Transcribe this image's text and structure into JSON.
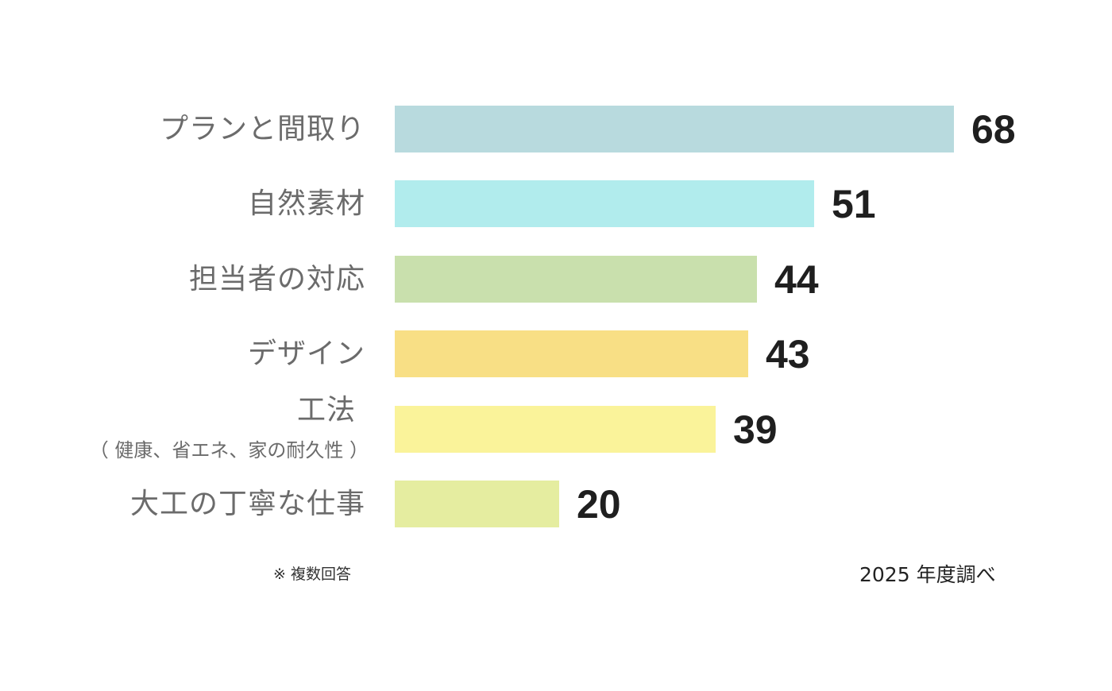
{
  "chart_data": {
    "type": "bar",
    "orientation": "horizontal",
    "categories": [
      {
        "label": "プランと間取り",
        "sublabel": ""
      },
      {
        "label": "自然素材",
        "sublabel": ""
      },
      {
        "label": "担当者の対応",
        "sublabel": ""
      },
      {
        "label": "デザイン",
        "sublabel": ""
      },
      {
        "label": "工法",
        "sublabel": "（ 健康、省エネ、家の耐久性 ）"
      },
      {
        "label": "大工の丁寧な仕事",
        "sublabel": ""
      }
    ],
    "values": [
      68,
      51,
      44,
      43,
      39,
      20
    ],
    "colors": [
      "#b8dade",
      "#b1eced",
      "#c9e0ad",
      "#f8df85",
      "#faf39a",
      "#e5eda0"
    ],
    "xlim": [
      0,
      68
    ],
    "grid": false,
    "legend": "none",
    "footnote": "※ 複数回答",
    "source": "2025 年度調べ"
  }
}
